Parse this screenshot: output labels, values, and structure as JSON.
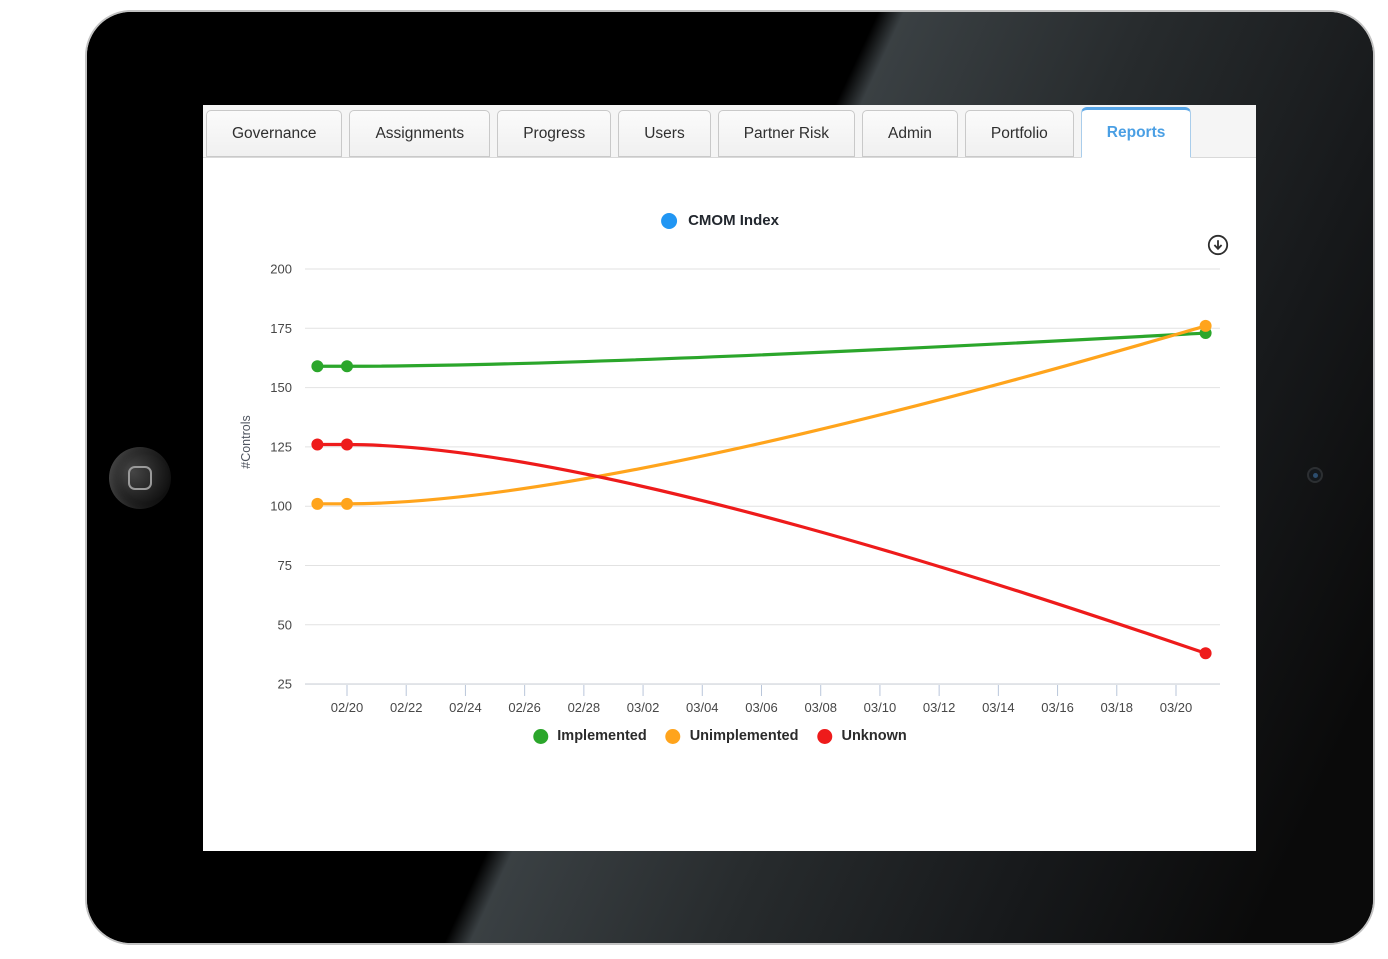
{
  "tabs": [
    {
      "label": "Governance",
      "active": false
    },
    {
      "label": "Assignments",
      "active": false
    },
    {
      "label": "Progress",
      "active": false
    },
    {
      "label": "Users",
      "active": false
    },
    {
      "label": "Partner Risk",
      "active": false
    },
    {
      "label": "Admin",
      "active": false
    },
    {
      "label": "Portfolio",
      "active": false
    },
    {
      "label": "Reports",
      "active": true
    }
  ],
  "toolbar": {
    "download_icon": "download-circle-icon",
    "accent_blue": "#4a9fe4"
  },
  "chart_data": {
    "type": "line",
    "top_legend": {
      "label": "CMOM Index",
      "color": "#2196f3"
    },
    "ylabel": "#Controls",
    "x": [
      "02/19",
      "02/20",
      "03/21"
    ],
    "x_ticks": [
      "02/20",
      "02/22",
      "02/24",
      "02/26",
      "02/28",
      "03/02",
      "03/04",
      "03/06",
      "03/08",
      "03/10",
      "03/12",
      "03/14",
      "03/16",
      "03/18",
      "03/20"
    ],
    "y_ticks": [
      200,
      175,
      150,
      125,
      100,
      75,
      50,
      25
    ],
    "ylim": [
      25,
      200
    ],
    "grid": true,
    "legend_position": "bottom",
    "series": [
      {
        "name": "Implemented",
        "color": "#2ba62b",
        "values": [
          159,
          159,
          173
        ]
      },
      {
        "name": "Unimplemented",
        "color": "#ffa41c",
        "values": [
          101,
          101,
          176
        ]
      },
      {
        "name": "Unknown",
        "color": "#ee1b1b",
        "values": [
          126,
          126,
          38
        ]
      }
    ]
  }
}
